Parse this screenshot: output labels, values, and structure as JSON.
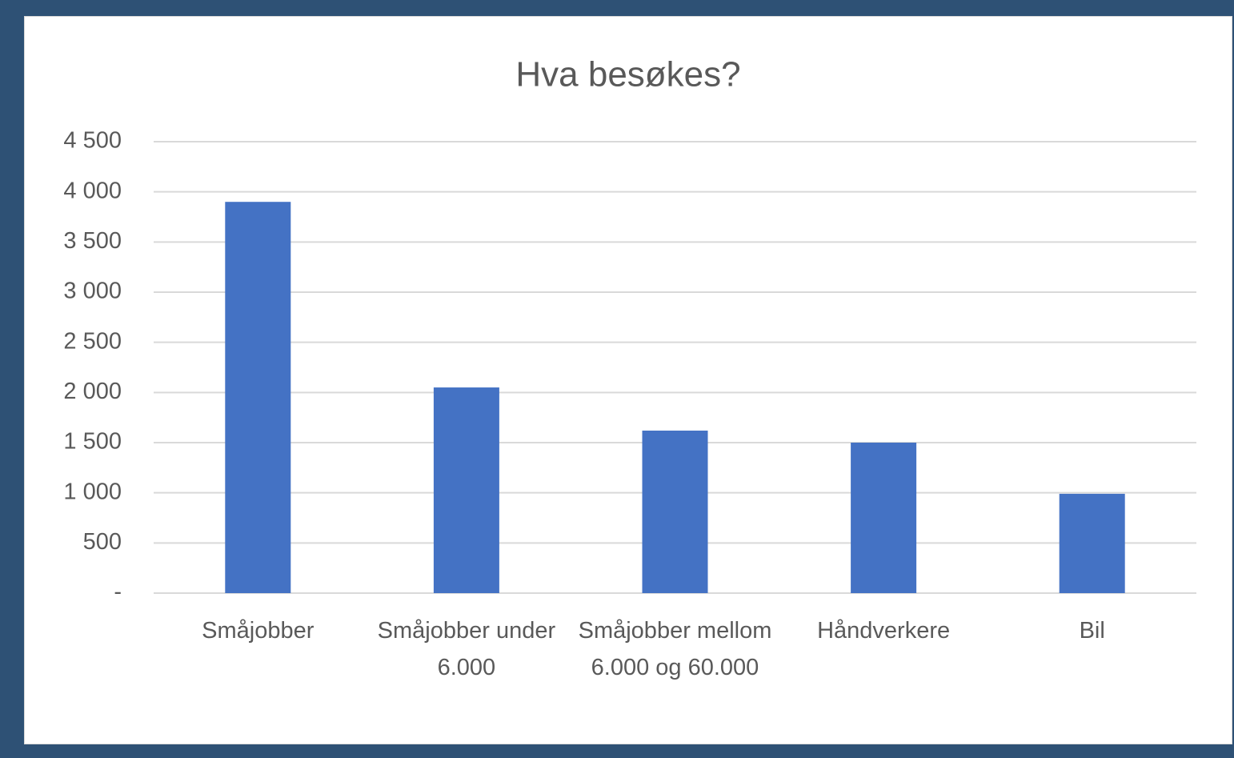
{
  "chart_data": {
    "type": "bar",
    "title": "Hva besøkes?",
    "categories": [
      "Småjobber",
      "Småjobber under 6.000",
      "Småjobber mellom 6.000 og 60.000",
      "Håndverkere",
      "Bil"
    ],
    "values": [
      3900,
      2050,
      1620,
      1500,
      990
    ],
    "color": "#4472c4",
    "ylim": [
      0,
      4500
    ],
    "yticks": [
      {
        "value": 0,
        "label": "-"
      },
      500,
      {
        "value": 1000,
        "label": "1 000"
      },
      {
        "value": 1500,
        "label": "1 500"
      },
      {
        "value": 2000,
        "label": "2 000"
      },
      {
        "value": 2500,
        "label": "2 500"
      },
      {
        "value": 3000,
        "label": "3 000"
      },
      {
        "value": 3500,
        "label": "3 500"
      },
      {
        "value": 4000,
        "label": "4 000"
      },
      {
        "value": 4500,
        "label": "4 500"
      }
    ],
    "grid": true
  }
}
